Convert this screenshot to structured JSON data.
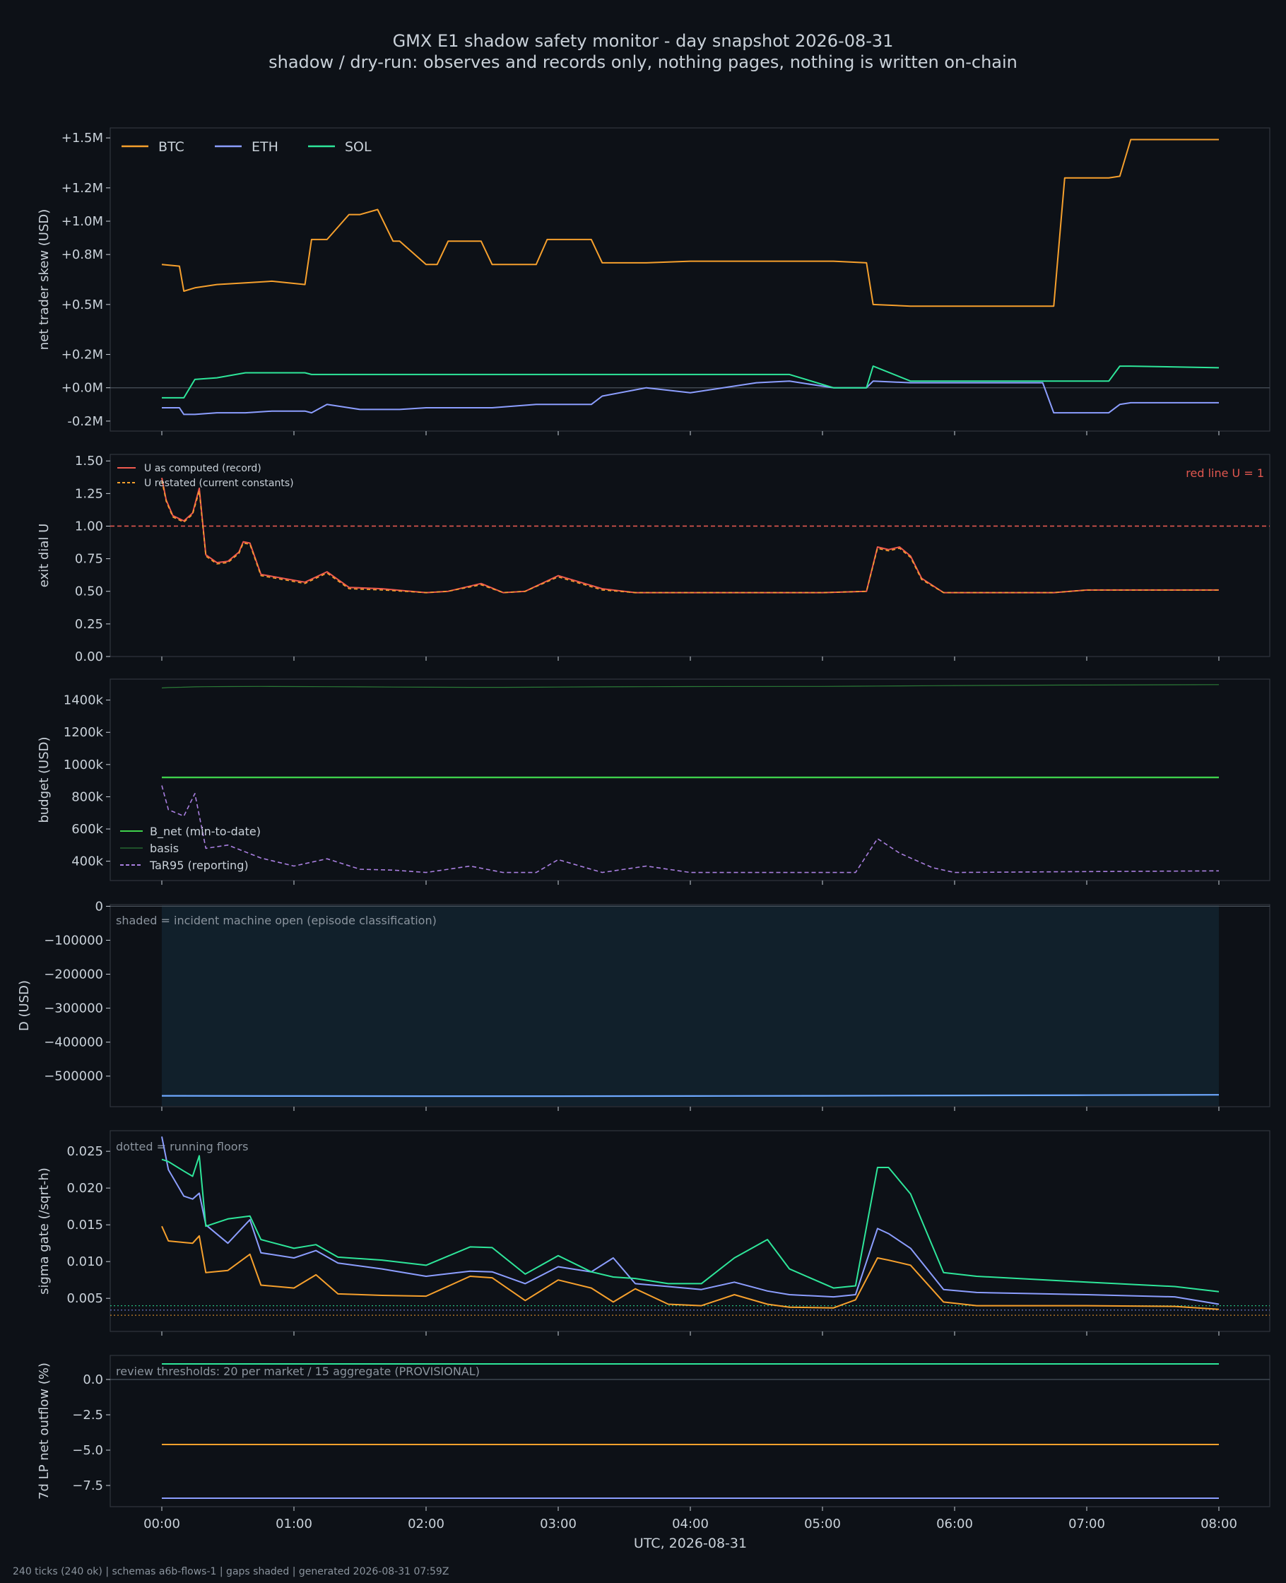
{
  "title": "GMX E1 shadow safety monitor - day snapshot 2026-08-31",
  "subtitle": "shadow / dry-run: observes and records only, nothing pages, nothing is written on-chain",
  "footer": "240 ticks (240 ok) | schemas a6b-flows-1 | gaps shaded | generated 2026-08-31 07:59Z",
  "colors": {
    "background": "#0d1117",
    "panel": "#0d1117",
    "spine": "#30363d",
    "text": "#c9d1d9",
    "btc": "#f6a02d",
    "eth": "#8c9eff",
    "sol": "#2ee69a",
    "u_record": "#f05a4f",
    "u_restated": "#f6a02d",
    "redline": "#e0574f",
    "bnet": "#3fd14c",
    "basis": "#2b7a37",
    "tar": "#a97fe0",
    "d_line": "#6ea8ff",
    "shade": "#11202b"
  },
  "chart_data": [
    {
      "type": "line",
      "ylabel": "net trader skew (USD)",
      "x": [
        "00:00",
        "00:08",
        "00:10",
        "00:15",
        "00:25",
        "00:38",
        "00:50",
        "01:05",
        "01:08",
        "01:15",
        "01:25",
        "01:30",
        "01:38",
        "01:45",
        "01:48",
        "02:00",
        "02:05",
        "02:10",
        "02:25",
        "02:30",
        "02:50",
        "02:55",
        "03:15",
        "03:20",
        "03:40",
        "04:00",
        "04:30",
        "04:45",
        "05:05",
        "05:20",
        "05:23",
        "05:40",
        "06:00",
        "06:40",
        "06:45",
        "06:50",
        "07:10",
        "07:15",
        "07:20",
        "08:00"
      ],
      "yticks": [
        "+1.5M",
        "+1.2M",
        "+1.0M",
        "+0.8M",
        "+0.5M",
        "+0.2M",
        "+0.0M",
        "-0.2M"
      ],
      "ylim": [
        -0.26,
        1.56
      ],
      "legend": [
        "BTC",
        "ETH",
        "SOL"
      ],
      "series": [
        {
          "name": "BTC",
          "values": [
            0.74,
            0.73,
            0.58,
            0.6,
            0.62,
            0.63,
            0.64,
            0.62,
            0.89,
            0.89,
            1.04,
            1.04,
            1.07,
            0.88,
            0.88,
            0.74,
            0.74,
            0.88,
            0.88,
            0.74,
            0.74,
            0.89,
            0.89,
            0.75,
            0.75,
            0.76,
            0.76,
            0.76,
            0.76,
            0.75,
            0.5,
            0.49,
            0.49,
            0.49,
            0.49,
            1.26,
            1.26,
            1.27,
            1.49,
            1.49
          ]
        },
        {
          "name": "ETH",
          "values": [
            -0.12,
            -0.12,
            -0.16,
            -0.16,
            -0.15,
            -0.15,
            -0.14,
            -0.14,
            -0.15,
            -0.1,
            -0.12,
            -0.13,
            -0.13,
            -0.13,
            -0.13,
            -0.12,
            -0.12,
            -0.12,
            -0.12,
            -0.12,
            -0.1,
            -0.1,
            -0.1,
            -0.05,
            0.0,
            -0.03,
            0.03,
            0.04,
            0.0,
            0.0,
            0.04,
            0.03,
            0.03,
            0.03,
            -0.15,
            -0.15,
            -0.15,
            -0.1,
            -0.09,
            -0.09
          ]
        },
        {
          "name": "SOL",
          "values": [
            -0.06,
            -0.06,
            -0.06,
            0.05,
            0.06,
            0.09,
            0.09,
            0.09,
            0.08,
            0.08,
            0.08,
            0.08,
            0.08,
            0.08,
            0.08,
            0.08,
            0.08,
            0.08,
            0.08,
            0.08,
            0.08,
            0.08,
            0.08,
            0.08,
            0.08,
            0.08,
            0.08,
            0.08,
            0.0,
            0.0,
            0.13,
            0.04,
            0.04,
            0.04,
            0.04,
            0.04,
            0.04,
            0.13,
            0.13,
            0.12
          ]
        }
      ]
    },
    {
      "type": "line",
      "ylabel": "exit dial U",
      "x": [
        "00:00",
        "00:02",
        "00:05",
        "00:10",
        "00:14",
        "00:17",
        "00:20",
        "00:25",
        "00:30",
        "00:35",
        "00:37",
        "00:40",
        "00:45",
        "01:05",
        "01:15",
        "01:25",
        "01:40",
        "02:00",
        "02:10",
        "02:25",
        "02:35",
        "02:45",
        "03:00",
        "03:20",
        "03:35",
        "04:00",
        "05:00",
        "05:20",
        "05:25",
        "05:30",
        "05:35",
        "05:40",
        "05:45",
        "05:55",
        "06:00",
        "06:45",
        "07:00",
        "08:00"
      ],
      "yticks": [
        "1.50",
        "1.25",
        "1.00",
        "0.75",
        "0.50",
        "0.25",
        "0.00"
      ],
      "ylim": [
        0,
        1.55
      ],
      "redline": 1.0,
      "redline_label": "red line U = 1",
      "legend": [
        "U as computed (record)",
        "U restated (current constants)"
      ],
      "series": [
        {
          "name": "U as computed (record)",
          "values": [
            1.37,
            1.2,
            1.08,
            1.04,
            1.1,
            1.29,
            0.78,
            0.72,
            0.73,
            0.8,
            0.88,
            0.87,
            0.63,
            0.57,
            0.65,
            0.53,
            0.52,
            0.49,
            0.5,
            0.56,
            0.49,
            0.5,
            0.62,
            0.52,
            0.49,
            0.49,
            0.49,
            0.5,
            0.84,
            0.82,
            0.84,
            0.77,
            0.6,
            0.49,
            0.49,
            0.49,
            0.51,
            0.51
          ]
        },
        {
          "name": "U restated (current constants)",
          "values": [
            1.35,
            1.19,
            1.07,
            1.03,
            1.09,
            1.27,
            0.77,
            0.71,
            0.72,
            0.79,
            0.87,
            0.86,
            0.62,
            0.56,
            0.64,
            0.52,
            0.51,
            0.49,
            0.5,
            0.55,
            0.49,
            0.5,
            0.61,
            0.51,
            0.49,
            0.49,
            0.49,
            0.5,
            0.83,
            0.81,
            0.83,
            0.76,
            0.59,
            0.49,
            0.49,
            0.49,
            0.51,
            0.51
          ]
        }
      ]
    },
    {
      "type": "line",
      "ylabel": "budget (USD)",
      "x": [
        "00:00",
        "00:03",
        "00:10",
        "00:15",
        "00:20",
        "00:30",
        "00:45",
        "01:00",
        "01:15",
        "01:30",
        "01:45",
        "02:00",
        "02:20",
        "02:35",
        "02:50",
        "03:00",
        "03:20",
        "03:40",
        "04:00",
        "05:00",
        "05:15",
        "05:25",
        "05:35",
        "05:50",
        "06:00",
        "06:50",
        "08:00"
      ],
      "yticks": [
        "1400k",
        "1200k",
        "1000k",
        "800k",
        "600k",
        "400k"
      ],
      "ylim": [
        280,
        1530
      ],
      "legend": [
        "B_net (min-to-date)",
        "basis",
        "TaR95 (reporting)"
      ],
      "series": [
        {
          "name": "B_net (min-to-date)",
          "values": [
            920,
            920,
            920,
            920,
            920,
            920,
            920,
            920,
            920,
            920,
            920,
            920,
            920,
            920,
            920,
            920,
            920,
            920,
            920,
            920,
            920,
            920,
            920,
            920,
            920,
            920,
            920
          ]
        },
        {
          "name": "basis",
          "values": [
            1475,
            1478,
            1480,
            1482,
            1483,
            1484,
            1485,
            1484,
            1483,
            1482,
            1481,
            1480,
            1479,
            1479,
            1480,
            1481,
            1482,
            1483,
            1484,
            1485,
            1486,
            1487,
            1488,
            1489,
            1490,
            1493,
            1496
          ]
        },
        {
          "name": "TaR95 (reporting)",
          "values": [
            870,
            720,
            680,
            820,
            480,
            500,
            420,
            370,
            415,
            350,
            345,
            330,
            370,
            330,
            330,
            410,
            330,
            370,
            330,
            330,
            330,
            540,
            450,
            360,
            330,
            335,
            340
          ]
        }
      ]
    },
    {
      "type": "line",
      "ylabel": "D (USD)",
      "note": "shaded = incident machine open (episode classification)",
      "x": [
        "00:00",
        "01:00",
        "02:00",
        "03:00",
        "04:00",
        "05:00",
        "06:00",
        "07:00",
        "08:00"
      ],
      "yticks": [
        "0",
        "−100000",
        "−200000",
        "−300000",
        "−400000",
        "−500000"
      ],
      "ylim": [
        -590000,
        5000
      ],
      "shaded": [
        "00:00",
        "08:00"
      ],
      "series": [
        {
          "values": [
            -558000,
            -558500,
            -559000,
            -559000,
            -558500,
            -558000,
            -557000,
            -556000,
            -555000
          ]
        }
      ]
    },
    {
      "type": "line",
      "ylabel": "sigma gate (/sqrt-h)",
      "note": "dotted = running floors",
      "x": [
        "00:00",
        "00:03",
        "00:10",
        "00:14",
        "00:17",
        "00:20",
        "00:30",
        "00:40",
        "00:45",
        "01:00",
        "01:10",
        "01:20",
        "01:40",
        "02:00",
        "02:20",
        "02:30",
        "02:45",
        "03:00",
        "03:15",
        "03:25",
        "03:35",
        "03:50",
        "04:05",
        "04:20",
        "04:35",
        "04:45",
        "05:05",
        "05:15",
        "05:25",
        "05:30",
        "05:40",
        "05:55",
        "06:10",
        "07:00",
        "07:40",
        "08:00"
      ],
      "yticks": [
        "0.025",
        "0.020",
        "0.015",
        "0.010",
        "0.005"
      ],
      "ylim": [
        0.0005,
        0.0278
      ],
      "floors": {
        "SOL": 0.004,
        "ETH": 0.0034,
        "BTC": 0.0027
      },
      "series": [
        {
          "name": "BTC",
          "values": [
            0.0148,
            0.0128,
            0.0126,
            0.0125,
            0.0135,
            0.0085,
            0.0088,
            0.011,
            0.0068,
            0.0064,
            0.0082,
            0.0056,
            0.0054,
            0.0053,
            0.008,
            0.0078,
            0.0047,
            0.0075,
            0.0064,
            0.0045,
            0.0063,
            0.0042,
            0.004,
            0.0055,
            0.0042,
            0.0038,
            0.0037,
            0.0048,
            0.0105,
            0.0102,
            0.0095,
            0.0045,
            0.004,
            0.004,
            0.0039,
            0.0035
          ]
        },
        {
          "name": "ETH",
          "values": [
            0.027,
            0.0225,
            0.0189,
            0.0185,
            0.0193,
            0.015,
            0.0125,
            0.0157,
            0.0112,
            0.0105,
            0.0115,
            0.0098,
            0.009,
            0.008,
            0.0087,
            0.0086,
            0.007,
            0.0093,
            0.0086,
            0.0105,
            0.007,
            0.0066,
            0.0062,
            0.0072,
            0.006,
            0.0055,
            0.0052,
            0.0055,
            0.0145,
            0.0138,
            0.0118,
            0.0062,
            0.0058,
            0.0055,
            0.0052,
            0.0042
          ]
        },
        {
          "name": "SOL",
          "values": [
            0.0239,
            0.0236,
            0.0223,
            0.0216,
            0.0244,
            0.0148,
            0.0158,
            0.0162,
            0.013,
            0.0118,
            0.0123,
            0.0106,
            0.0102,
            0.0095,
            0.012,
            0.0119,
            0.0083,
            0.0108,
            0.0086,
            0.0079,
            0.0077,
            0.007,
            0.007,
            0.0105,
            0.013,
            0.009,
            0.0064,
            0.0067,
            0.0228,
            0.0228,
            0.0192,
            0.0085,
            0.008,
            0.0072,
            0.0066,
            0.0059
          ]
        }
      ]
    },
    {
      "type": "line",
      "ylabel": "7d LP net outflow (%)",
      "xlabel": "UTC, 2026-08-31",
      "note": "review thresholds: 20 per market / 15 aggregate (PROVISIONAL)",
      "x": [
        "00:00",
        "08:00"
      ],
      "xticks": [
        "00:00",
        "01:00",
        "02:00",
        "03:00",
        "04:00",
        "05:00",
        "06:00",
        "07:00",
        "08:00"
      ],
      "yticks": [
        "0.0",
        "−2.5",
        "−5.0",
        "−7.5"
      ],
      "ylim": [
        -9.0,
        1.7
      ],
      "series": [
        {
          "name": "SOL",
          "values": [
            1.1,
            1.1
          ]
        },
        {
          "name": "BTC",
          "values": [
            -4.6,
            -4.6
          ]
        },
        {
          "name": "ETH",
          "values": [
            -8.4,
            -8.4
          ]
        }
      ]
    }
  ]
}
